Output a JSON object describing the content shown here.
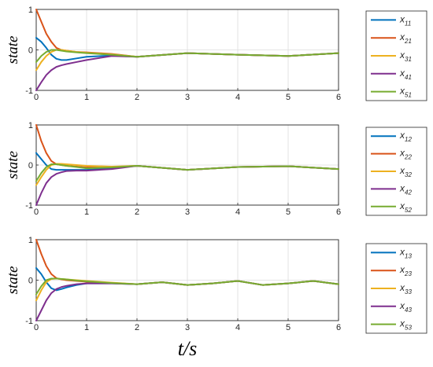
{
  "chart_data": [
    {
      "type": "line",
      "ylabel": "state",
      "xlim": [
        0,
        6
      ],
      "ylim": [
        -1,
        1
      ],
      "xticks": [
        "0",
        "1",
        "2",
        "3",
        "4",
        "5",
        "6"
      ],
      "yticks": [
        "-1",
        "0",
        "1"
      ],
      "grid": true,
      "legend_position": "right",
      "series": [
        {
          "name": "x11",
          "label_base": "x",
          "label_sub": "11",
          "color": "#0072BD",
          "x": [
            0,
            0.1,
            0.2,
            0.3,
            0.4,
            0.5,
            0.6,
            0.8,
            1.0,
            1.5,
            2.0,
            3.0,
            4.0,
            5.0,
            6.0
          ],
          "y": [
            0.3,
            0.2,
            0.05,
            -0.12,
            -0.22,
            -0.25,
            -0.25,
            -0.21,
            -0.17,
            -0.14,
            -0.17,
            -0.08,
            -0.12,
            -0.15,
            -0.08
          ]
        },
        {
          "name": "x21",
          "label_base": "x",
          "label_sub": "21",
          "color": "#D95319",
          "x": [
            0,
            0.1,
            0.2,
            0.3,
            0.4,
            0.5,
            0.6,
            0.8,
            1.0,
            1.5,
            2.0,
            3.0,
            4.0,
            5.0,
            6.0
          ],
          "y": [
            1.0,
            0.7,
            0.4,
            0.2,
            0.05,
            0.0,
            -0.02,
            -0.05,
            -0.06,
            -0.1,
            -0.17,
            -0.08,
            -0.12,
            -0.15,
            -0.08
          ]
        },
        {
          "name": "x31",
          "label_base": "x",
          "label_sub": "31",
          "color": "#EDB120",
          "x": [
            0,
            0.1,
            0.2,
            0.3,
            0.4,
            0.5,
            0.6,
            0.8,
            1.0,
            1.5,
            2.0,
            3.0,
            4.0,
            5.0,
            6.0
          ],
          "y": [
            -0.5,
            -0.3,
            -0.15,
            -0.05,
            0.0,
            0.0,
            -0.02,
            -0.05,
            -0.07,
            -0.11,
            -0.17,
            -0.08,
            -0.12,
            -0.15,
            -0.08
          ]
        },
        {
          "name": "x41",
          "label_base": "x",
          "label_sub": "41",
          "color": "#7E2F8E",
          "x": [
            0,
            0.1,
            0.2,
            0.3,
            0.4,
            0.5,
            0.6,
            0.8,
            1.0,
            1.5,
            2.0,
            3.0,
            4.0,
            5.0,
            6.0
          ],
          "y": [
            -1.0,
            -0.8,
            -0.62,
            -0.5,
            -0.42,
            -0.38,
            -0.35,
            -0.3,
            -0.25,
            -0.15,
            -0.17,
            -0.08,
            -0.12,
            -0.15,
            -0.08
          ]
        },
        {
          "name": "x51",
          "label_base": "x",
          "label_sub": "51",
          "color": "#77AC30",
          "x": [
            0,
            0.1,
            0.2,
            0.3,
            0.4,
            0.5,
            0.6,
            0.8,
            1.0,
            1.5,
            2.0,
            3.0,
            4.0,
            5.0,
            6.0
          ],
          "y": [
            -0.3,
            -0.15,
            -0.05,
            0.0,
            0.0,
            -0.02,
            -0.04,
            -0.06,
            -0.08,
            -0.12,
            -0.17,
            -0.08,
            -0.12,
            -0.15,
            -0.08
          ]
        }
      ]
    },
    {
      "type": "line",
      "ylabel": "state",
      "xlim": [
        0,
        6
      ],
      "ylim": [
        -1,
        1
      ],
      "xticks": [
        "0",
        "1",
        "2",
        "3",
        "4",
        "5",
        "6"
      ],
      "yticks": [
        "-1",
        "0",
        "1"
      ],
      "grid": true,
      "legend_position": "right",
      "series": [
        {
          "name": "x12",
          "label_base": "x",
          "label_sub": "12",
          "color": "#0072BD",
          "x": [
            0,
            0.1,
            0.2,
            0.3,
            0.4,
            0.5,
            0.6,
            0.8,
            1.0,
            1.5,
            2.0,
            3.0,
            4.0,
            5.0,
            6.0
          ],
          "y": [
            0.3,
            0.15,
            0.0,
            -0.1,
            -0.12,
            -0.12,
            -0.12,
            -0.12,
            -0.12,
            -0.08,
            -0.02,
            -0.12,
            -0.05,
            -0.03,
            -0.1
          ]
        },
        {
          "name": "x22",
          "label_base": "x",
          "label_sub": "22",
          "color": "#D95319",
          "x": [
            0,
            0.1,
            0.2,
            0.3,
            0.4,
            0.5,
            0.6,
            0.8,
            1.0,
            1.5,
            2.0,
            3.0,
            4.0,
            5.0,
            6.0
          ],
          "y": [
            1.0,
            0.6,
            0.3,
            0.1,
            0.02,
            0.0,
            -0.02,
            -0.04,
            -0.06,
            -0.05,
            -0.02,
            -0.12,
            -0.05,
            -0.03,
            -0.1
          ]
        },
        {
          "name": "x32",
          "label_base": "x",
          "label_sub": "32",
          "color": "#EDB120",
          "x": [
            0,
            0.1,
            0.2,
            0.3,
            0.4,
            0.5,
            0.6,
            0.8,
            1.0,
            1.5,
            2.0,
            3.0,
            4.0,
            5.0,
            6.0
          ],
          "y": [
            -0.5,
            -0.3,
            -0.12,
            0.0,
            0.03,
            0.03,
            0.02,
            0.0,
            -0.02,
            -0.04,
            -0.02,
            -0.12,
            -0.05,
            -0.03,
            -0.1
          ]
        },
        {
          "name": "x42",
          "label_base": "x",
          "label_sub": "42",
          "color": "#7E2F8E",
          "x": [
            0,
            0.1,
            0.2,
            0.3,
            0.4,
            0.5,
            0.6,
            0.8,
            1.0,
            1.5,
            2.0,
            3.0,
            4.0,
            5.0,
            6.0
          ],
          "y": [
            -1.0,
            -0.7,
            -0.45,
            -0.3,
            -0.22,
            -0.18,
            -0.15,
            -0.14,
            -0.14,
            -0.1,
            -0.02,
            -0.12,
            -0.05,
            -0.03,
            -0.1
          ]
        },
        {
          "name": "x52",
          "label_base": "x",
          "label_sub": "52",
          "color": "#77AC30",
          "x": [
            0,
            0.1,
            0.2,
            0.3,
            0.4,
            0.5,
            0.6,
            0.8,
            1.0,
            1.5,
            2.0,
            3.0,
            4.0,
            5.0,
            6.0
          ],
          "y": [
            -0.4,
            -0.2,
            -0.05,
            0.02,
            0.02,
            0.0,
            -0.02,
            -0.05,
            -0.08,
            -0.06,
            -0.02,
            -0.12,
            -0.05,
            -0.03,
            -0.1
          ]
        }
      ]
    },
    {
      "type": "line",
      "ylabel": "state",
      "xlabel": "t/s",
      "xlim": [
        0,
        6
      ],
      "ylim": [
        -1,
        1
      ],
      "xticks": [
        "0",
        "1",
        "2",
        "3",
        "4",
        "5",
        "6"
      ],
      "yticks": [
        "-1",
        "0",
        "1"
      ],
      "grid": true,
      "legend_position": "right",
      "series": [
        {
          "name": "x13",
          "label_base": "x",
          "label_sub": "13",
          "color": "#0072BD",
          "x": [
            0,
            0.1,
            0.2,
            0.3,
            0.4,
            0.5,
            0.6,
            0.8,
            1.0,
            1.5,
            2.0,
            2.5,
            3.0,
            3.5,
            4.0,
            4.5,
            5.0,
            5.5,
            6.0
          ],
          "y": [
            0.3,
            0.15,
            -0.05,
            -0.2,
            -0.25,
            -0.22,
            -0.18,
            -0.12,
            -0.08,
            -0.08,
            -0.1,
            -0.05,
            -0.12,
            -0.08,
            -0.02,
            -0.12,
            -0.08,
            -0.02,
            -0.1
          ]
        },
        {
          "name": "x23",
          "label_base": "x",
          "label_sub": "23",
          "color": "#D95319",
          "x": [
            0,
            0.1,
            0.2,
            0.3,
            0.4,
            0.5,
            0.6,
            0.8,
            1.0,
            1.5,
            2.0,
            2.5,
            3.0,
            3.5,
            4.0,
            4.5,
            5.0,
            5.5,
            6.0
          ],
          "y": [
            1.0,
            0.65,
            0.35,
            0.15,
            0.05,
            0.02,
            0.0,
            -0.02,
            -0.04,
            -0.07,
            -0.1,
            -0.05,
            -0.12,
            -0.08,
            -0.02,
            -0.12,
            -0.08,
            -0.02,
            -0.1
          ]
        },
        {
          "name": "x33",
          "label_base": "x",
          "label_sub": "33",
          "color": "#EDB120",
          "x": [
            0,
            0.1,
            0.2,
            0.3,
            0.4,
            0.5,
            0.6,
            0.8,
            1.0,
            1.5,
            2.0,
            2.5,
            3.0,
            3.5,
            4.0,
            4.5,
            5.0,
            5.5,
            6.0
          ],
          "y": [
            -0.5,
            -0.25,
            -0.05,
            0.03,
            0.04,
            0.03,
            0.02,
            0.0,
            -0.02,
            -0.06,
            -0.1,
            -0.05,
            -0.12,
            -0.08,
            -0.02,
            -0.12,
            -0.08,
            -0.02,
            -0.1
          ]
        },
        {
          "name": "x43",
          "label_base": "x",
          "label_sub": "43",
          "color": "#7E2F8E",
          "x": [
            0,
            0.1,
            0.2,
            0.3,
            0.4,
            0.5,
            0.6,
            0.8,
            1.0,
            1.5,
            2.0,
            2.5,
            3.0,
            3.5,
            4.0,
            4.5,
            5.0,
            5.5,
            6.0
          ],
          "y": [
            -1.0,
            -0.75,
            -0.5,
            -0.32,
            -0.22,
            -0.17,
            -0.14,
            -0.1,
            -0.08,
            -0.08,
            -0.1,
            -0.05,
            -0.12,
            -0.08,
            -0.02,
            -0.12,
            -0.08,
            -0.02,
            -0.1
          ]
        },
        {
          "name": "x53",
          "label_base": "x",
          "label_sub": "53",
          "color": "#77AC30",
          "x": [
            0,
            0.1,
            0.2,
            0.3,
            0.4,
            0.5,
            0.6,
            0.8,
            1.0,
            1.5,
            2.0,
            2.5,
            3.0,
            3.5,
            4.0,
            4.5,
            5.0,
            5.5,
            6.0
          ],
          "y": [
            -0.35,
            -0.15,
            0.0,
            0.04,
            0.04,
            0.03,
            0.02,
            -0.01,
            -0.03,
            -0.07,
            -0.1,
            -0.05,
            -0.12,
            -0.08,
            -0.02,
            -0.12,
            -0.08,
            -0.02,
            -0.1
          ]
        }
      ]
    }
  ]
}
